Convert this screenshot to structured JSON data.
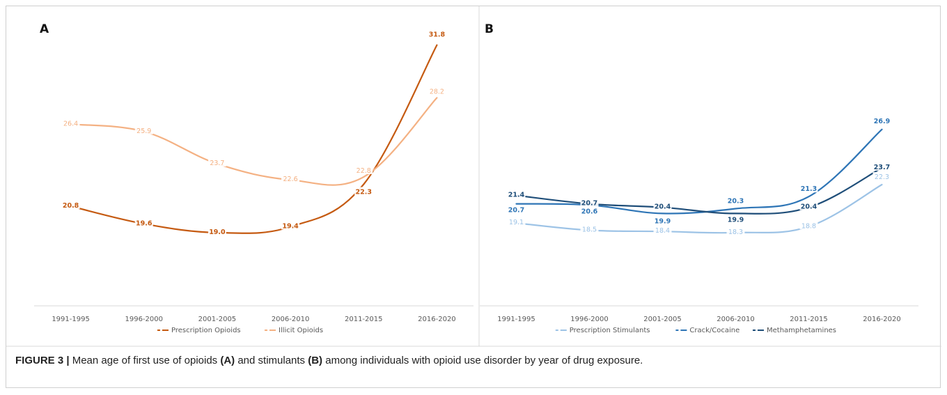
{
  "chart_data": [
    {
      "type": "line",
      "panel_label": "A",
      "categories": [
        "1991-1995",
        "1996-2000",
        "2001-2005",
        "2006-2010",
        "2011-2015",
        "2016-2020"
      ],
      "series": [
        {
          "name": "Prescription Opioids",
          "color": "#c55a11",
          "values": [
            20.8,
            19.6,
            19.0,
            19.4,
            22.3,
            31.8
          ]
        },
        {
          "name": "Illicit Opioids",
          "color": "#f4b183",
          "values": [
            26.4,
            25.9,
            23.7,
            22.6,
            22.8,
            28.2
          ]
        }
      ],
      "ylim": [
        14,
        33.5
      ],
      "legend": "bottom",
      "grid": false
    },
    {
      "type": "line",
      "panel_label": "B",
      "categories": [
        "1991-1995",
        "1996-2000",
        "2001-2005",
        "2006-2010",
        "2011-2015",
        "2016-2020"
      ],
      "series": [
        {
          "name": "Prescription Stimulants",
          "color": "#9dc3e6",
          "values": [
            19.1,
            18.5,
            18.4,
            18.3,
            18.8,
            22.3
          ]
        },
        {
          "name": "Crack/Cocaine",
          "color": "#2e75b6",
          "values": [
            20.7,
            20.6,
            19.9,
            20.3,
            21.3,
            26.9
          ]
        },
        {
          "name": "Methamphetamines",
          "color": "#1f4e79",
          "values": [
            21.4,
            20.7,
            20.4,
            19.9,
            20.4,
            23.7
          ]
        }
      ],
      "ylim": [
        12.2,
        36
      ],
      "legend": "bottom",
      "grid": false
    }
  ],
  "caption": {
    "lead": "FIGURE 3 |",
    "t1": " Mean age of first use of opioids ",
    "a": "(A)",
    "t2": " and stimulants ",
    "b": "(B)",
    "t3": " among individuals with opioid use disorder by year of drug exposure."
  }
}
